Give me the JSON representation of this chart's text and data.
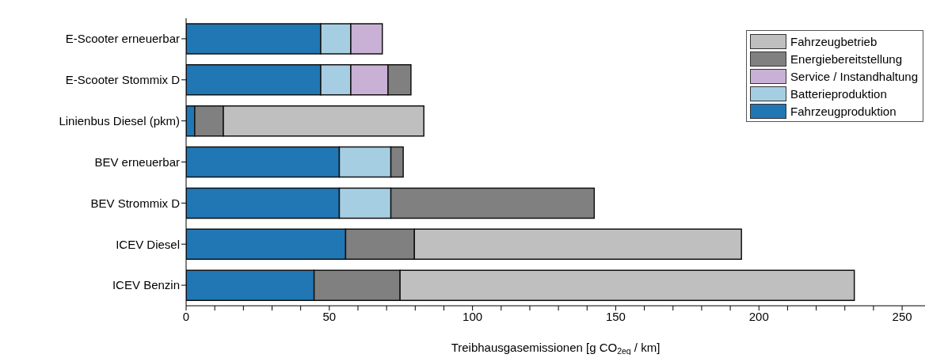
{
  "chart_data": {
    "type": "bar",
    "orientation": "horizontal",
    "stacked": true,
    "categories": [
      "E-Scooter erneuerbar",
      "E-Scooter Stommix D",
      "Linienbus Diesel (pkm)",
      "BEV erneuerbar",
      "BEV Strommix D",
      "ICEV Diesel",
      "ICEV Benzin"
    ],
    "series": [
      {
        "name": "Fahrzeugproduktion",
        "color": "#2077b4",
        "values": [
          47,
          47,
          3,
          53.5,
          53.5,
          55.7,
          44.7
        ]
      },
      {
        "name": "Batterieproduktion",
        "color": "#a6cee3",
        "values": [
          10.5,
          10.5,
          null,
          18,
          18,
          null,
          null
        ]
      },
      {
        "name": "Service / Instandhaltung",
        "color": "#c9b1d6",
        "values": [
          11,
          13,
          null,
          null,
          null,
          null,
          null
        ]
      },
      {
        "name": "Energiebereitstellung",
        "color": "#808080",
        "values": [
          null,
          8,
          10,
          4.3,
          71,
          24,
          30
        ]
      },
      {
        "name": "Fahrzeugbetrieb",
        "color": "#bfbfbf",
        "values": [
          null,
          null,
          70,
          null,
          null,
          114.2,
          158.6
        ]
      }
    ],
    "xlabel": "Treibhausgasemissionen [g CO$_{2eq}$ / km]",
    "xlim": [
      0,
      258
    ],
    "xticks": [
      0,
      {
        "value": 10,
        "label": null
      },
      {
        "value": 20,
        "label": null
      },
      {
        "value": 30,
        "label": null
      },
      {
        "value": 40,
        "label": null
      },
      50,
      {
        "value": 60,
        "label": null
      },
      {
        "value": 70,
        "label": null
      },
      {
        "value": 80,
        "label": null
      },
      {
        "value": 90,
        "label": null
      },
      100,
      {
        "value": 110,
        "label": null
      },
      {
        "value": 120,
        "label": null
      },
      {
        "value": 130,
        "label": null
      },
      {
        "value": 140,
        "label": null
      },
      150,
      {
        "value": 160,
        "label": null
      },
      {
        "value": 170,
        "label": null
      },
      {
        "value": 180,
        "label": null
      },
      {
        "value": 190,
        "label": null
      },
      200,
      {
        "value": 210,
        "label": null
      },
      {
        "value": 220,
        "label": null
      },
      {
        "value": 230,
        "label": null
      },
      {
        "value": 240,
        "label": null
      },
      250
    ],
    "legend": "top right"
  }
}
